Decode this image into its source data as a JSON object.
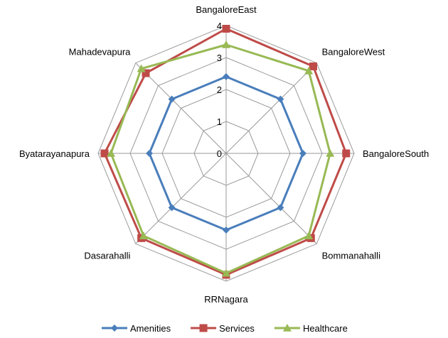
{
  "chart_data": {
    "type": "radar",
    "title": "",
    "categories": [
      "BangaloreEast",
      "BangaloreWest",
      "BangaloreSouth",
      "Bommanahalli",
      "RRNagara",
      "Dasarahalli",
      "Byatarayanapura",
      "Mahadevapura"
    ],
    "rlim": [
      0,
      4
    ],
    "ticks": [
      0,
      1,
      2,
      3,
      4
    ],
    "grid": true,
    "legend_position": "bottom",
    "series": [
      {
        "name": "Amenities",
        "color": "#4a7ebb",
        "marker": "diamond",
        "values": [
          2.4,
          2.4,
          2.4,
          2.4,
          2.4,
          2.4,
          2.4,
          2.4
        ]
      },
      {
        "name": "Services",
        "color": "#be4b48",
        "marker": "square",
        "values": [
          3.9,
          3.85,
          3.75,
          3.75,
          3.8,
          3.75,
          3.8,
          3.55
        ]
      },
      {
        "name": "Healthcare",
        "color": "#98b954",
        "marker": "triangle",
        "values": [
          3.4,
          3.65,
          3.25,
          3.65,
          3.75,
          3.65,
          3.6,
          3.75
        ]
      }
    ]
  }
}
